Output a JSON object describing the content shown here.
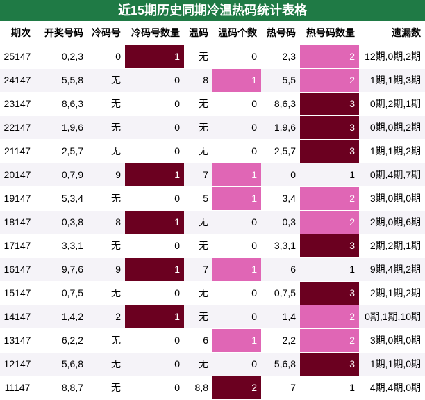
{
  "header": {
    "title": "近15期历史同期冷温热码统计表格"
  },
  "table": {
    "columns": [
      "期次",
      "开奖号码",
      "冷码号",
      "冷码号数量",
      "温码",
      "温码个数",
      "热号码",
      "热号码数量",
      "遗漏数"
    ],
    "rows": [
      [
        "25147",
        "0,2,3",
        "0",
        1,
        "无",
        0,
        "2,3",
        2,
        "12期,0期,2期"
      ],
      [
        "24147",
        "5,5,8",
        "无",
        0,
        "8",
        1,
        "5,5",
        2,
        "1期,1期,3期"
      ],
      [
        "23147",
        "8,6,3",
        "无",
        0,
        "无",
        0,
        "8,6,3",
        3,
        "0期,2期,1期"
      ],
      [
        "22147",
        "1,9,6",
        "无",
        0,
        "无",
        0,
        "1,9,6",
        3,
        "0期,0期,2期"
      ],
      [
        "21147",
        "2,5,7",
        "无",
        0,
        "无",
        0,
        "2,5,7",
        3,
        "1期,1期,2期"
      ],
      [
        "20147",
        "0,7,9",
        "9",
        1,
        "7",
        1,
        "0",
        1,
        "0期,4期,7期"
      ],
      [
        "19147",
        "5,3,4",
        "无",
        0,
        "5",
        1,
        "3,4",
        2,
        "3期,0期,0期"
      ],
      [
        "18147",
        "0,3,8",
        "8",
        1,
        "无",
        0,
        "0,3",
        2,
        "2期,0期,6期"
      ],
      [
        "17147",
        "3,3,1",
        "无",
        0,
        "无",
        0,
        "3,3,1",
        3,
        "2期,2期,1期"
      ],
      [
        "16147",
        "9,7,6",
        "9",
        1,
        "7",
        1,
        "6",
        1,
        "9期,4期,2期"
      ],
      [
        "15147",
        "0,7,5",
        "无",
        0,
        "无",
        0,
        "0,7,5",
        3,
        "2期,1期,2期"
      ],
      [
        "14147",
        "1,4,2",
        "2",
        1,
        "无",
        0,
        "1,4",
        2,
        "0期,1期,10期"
      ],
      [
        "13147",
        "6,2,2",
        "无",
        0,
        "6",
        1,
        "2,2",
        2,
        "3期,0期,0期"
      ],
      [
        "12147",
        "5,6,8",
        "无",
        0,
        "无",
        0,
        "5,6,8",
        3,
        "1期,1期,0期"
      ],
      [
        "11147",
        "8,8,7",
        "无",
        0,
        "8,8",
        2,
        "7",
        1,
        "4期,4期,0期"
      ]
    ]
  }
}
